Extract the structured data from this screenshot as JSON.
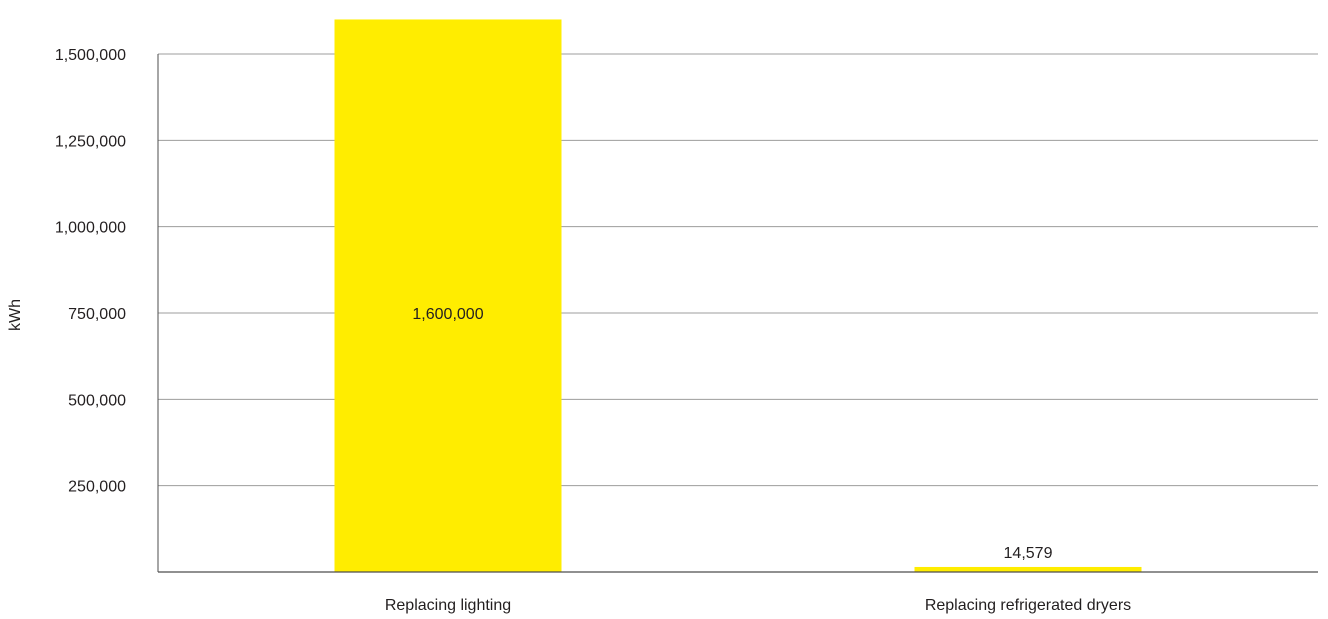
{
  "chart_data": {
    "type": "bar",
    "categories": [
      "Replacing lighting",
      "Replacing refrigerated dryers"
    ],
    "values": [
      1600000,
      14579
    ],
    "data_labels": [
      "1,600,000",
      "14,579"
    ],
    "ylabel": "kWh",
    "xlabel": "",
    "ylim": [
      0,
      1500000
    ],
    "yticks": [
      250000,
      500000,
      750000,
      1000000,
      1250000,
      1500000
    ],
    "ytick_labels": [
      "250,000",
      "500,000",
      "750,000",
      "1,000,000",
      "1,250,000",
      "1,500,000"
    ],
    "grid": true,
    "legend": "none",
    "colors": {
      "bar": "#ffed00",
      "grid": "#9d9d9c",
      "axis": "#4d4d4d",
      "text": "#231f20"
    }
  }
}
